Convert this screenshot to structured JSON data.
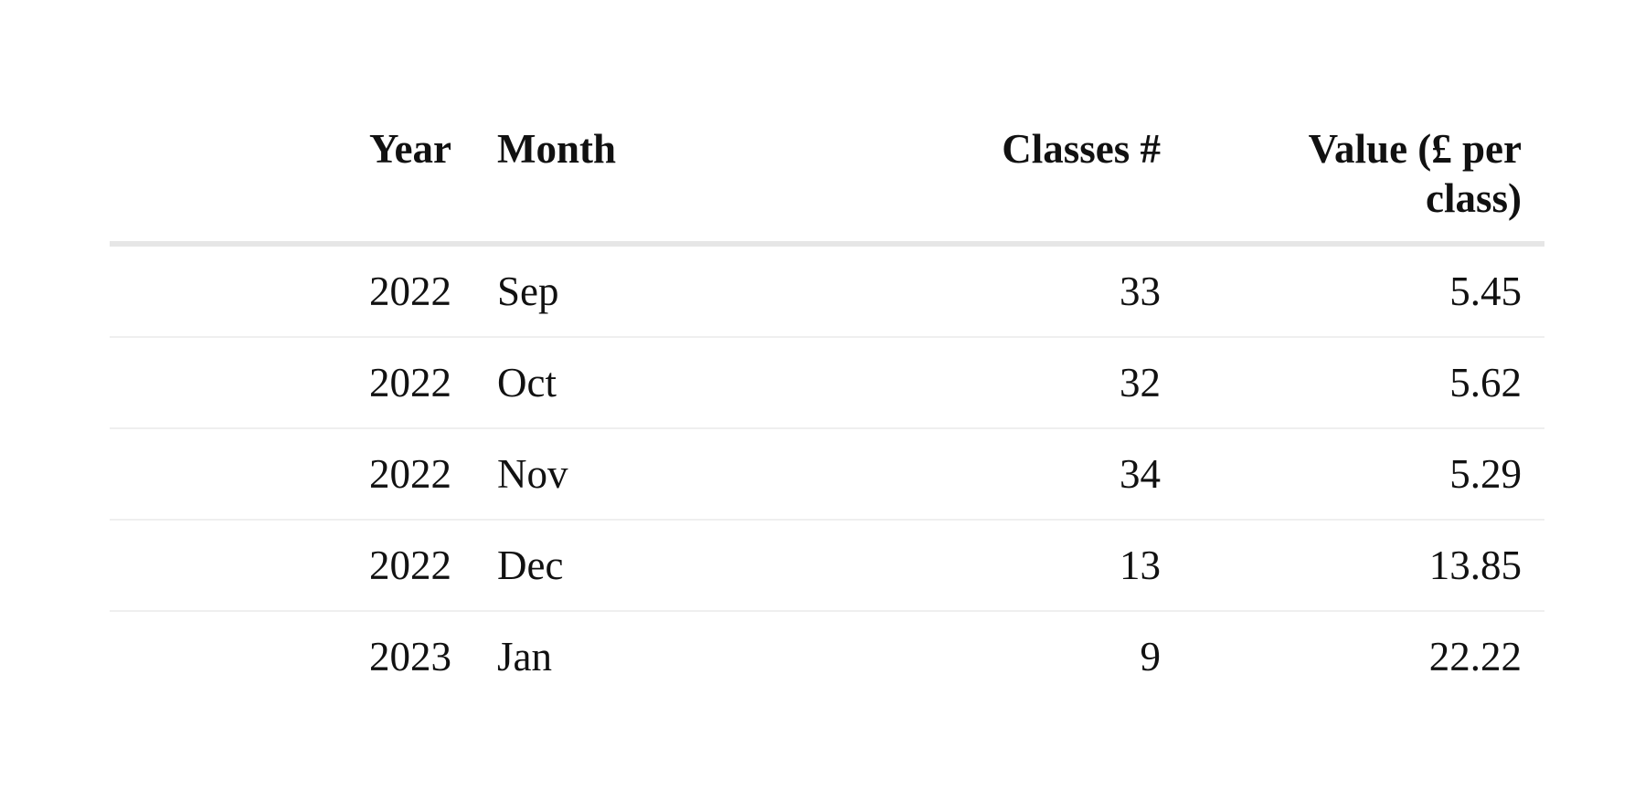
{
  "table": {
    "headers": {
      "year": "Year",
      "month": "Month",
      "classes": "Classes #",
      "value": "Value (£ per class)"
    },
    "rows": [
      {
        "year": "2022",
        "month": "Sep",
        "classes": "33",
        "value": "5.45"
      },
      {
        "year": "2022",
        "month": "Oct",
        "classes": "32",
        "value": "5.62"
      },
      {
        "year": "2022",
        "month": "Nov",
        "classes": "34",
        "value": "5.29"
      },
      {
        "year": "2022",
        "month": "Dec",
        "classes": "13",
        "value": "13.85"
      },
      {
        "year": "2023",
        "month": "Jan",
        "classes": "9",
        "value": "22.22"
      }
    ]
  },
  "colors": {
    "text": "#111111",
    "header_rule": "#e6e6e6",
    "row_rule": "#efefef",
    "background": "#ffffff"
  }
}
